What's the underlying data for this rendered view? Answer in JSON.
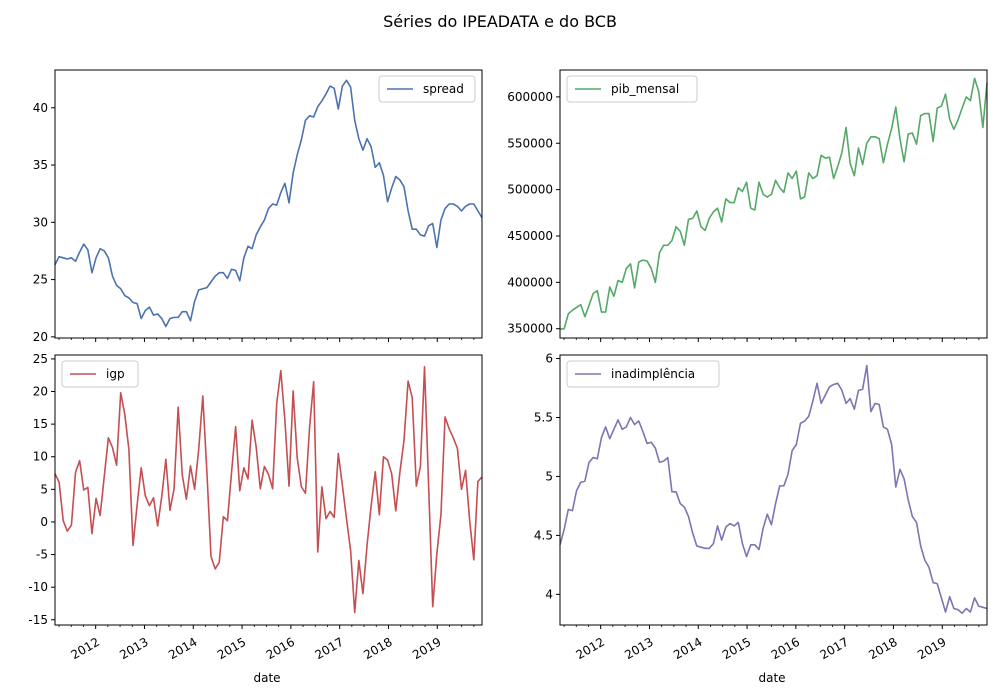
{
  "figure": {
    "title": "Séries do IPEADATA e do BCB",
    "xlabel": "date"
  },
  "chart_data": [
    {
      "type": "line",
      "series": [
        {
          "name": "spread",
          "color": "#4c72b0",
          "values": [
            26.3,
            27.0,
            26.9,
            26.8,
            26.9,
            26.6,
            27.4,
            28.1,
            27.6,
            25.6,
            26.9,
            27.7,
            27.5,
            26.9,
            25.3,
            24.5,
            24.2,
            23.6,
            23.4,
            23.0,
            22.9,
            21.6,
            22.3,
            22.6,
            21.9,
            22.0,
            21.6,
            20.9,
            21.6,
            21.7,
            21.7,
            22.2,
            22.2,
            21.4,
            23.1,
            24.1,
            24.2,
            24.3,
            24.8,
            25.3,
            25.6,
            25.6,
            25.1,
            25.9,
            25.8,
            24.9,
            26.9,
            27.9,
            27.7,
            28.9,
            29.6,
            30.2,
            31.2,
            31.6,
            31.5,
            32.6,
            33.4,
            31.7,
            34.3,
            35.9,
            37.2,
            38.9,
            39.3,
            39.2,
            40.1,
            40.6,
            41.2,
            41.9,
            41.7,
            39.9,
            41.9,
            42.4,
            41.8,
            38.9,
            37.3,
            36.3,
            37.3,
            36.6,
            34.8,
            35.2,
            34.1,
            31.8,
            33.0,
            34.0,
            33.7,
            33.1,
            31.0,
            29.4,
            29.4,
            28.9,
            28.8,
            29.7,
            29.9,
            27.8,
            30.2,
            31.2,
            31.6,
            31.6,
            31.4,
            31.0,
            31.4,
            31.6,
            31.6,
            31.0,
            30.4
          ]
        }
      ],
      "ylim": [
        19.9,
        43.3
      ],
      "yticks": [
        20,
        25,
        30,
        35,
        40
      ],
      "legend": "top-right"
    },
    {
      "type": "line",
      "series": [
        {
          "name": "pib_mensal",
          "color": "#55a868",
          "values": [
            349500,
            350000,
            366000,
            370000,
            373000,
            376000,
            363000,
            375000,
            388000,
            391000,
            368000,
            368000,
            395000,
            385000,
            402000,
            400000,
            415000,
            420000,
            394000,
            422000,
            424000,
            423000,
            415000,
            400000,
            432000,
            440000,
            440000,
            445000,
            460000,
            455000,
            440000,
            468000,
            469000,
            477000,
            460000,
            456000,
            469000,
            476000,
            480000,
            465000,
            490000,
            486000,
            486000,
            502000,
            498000,
            508000,
            480000,
            478000,
            508000,
            495000,
            492000,
            495000,
            510000,
            502000,
            497000,
            518000,
            512000,
            520000,
            490000,
            492000,
            518000,
            512000,
            515000,
            537000,
            534000,
            535000,
            512000,
            525000,
            540000,
            567000,
            528000,
            515000,
            545000,
            527000,
            550000,
            557000,
            557000,
            555000,
            529000,
            549000,
            566000,
            589000,
            555000,
            530000,
            560000,
            561000,
            549000,
            580000,
            582000,
            582000,
            552000,
            588000,
            590000,
            603000,
            576000,
            565000,
            575000,
            588000,
            600000,
            596000,
            620000,
            606000,
            567000,
            615000
          ]
        }
      ],
      "ylim": [
        340000,
        629000
      ],
      "yticks": [
        350000,
        400000,
        450000,
        500000,
        550000,
        600000
      ],
      "legend": "top-left"
    },
    {
      "type": "line",
      "series": [
        {
          "name": "igp",
          "color": "#c44e52",
          "values": [
            7.4,
            6.1,
            0.2,
            -1.4,
            -0.5,
            7.6,
            9.4,
            4.9,
            5.3,
            -1.8,
            3.6,
            1.0,
            7.0,
            12.9,
            11.4,
            8.7,
            19.8,
            16.5,
            11.1,
            -3.6,
            2.6,
            8.3,
            4.0,
            2.5,
            3.7,
            -0.6,
            3.9,
            9.6,
            1.8,
            5.1,
            17.6,
            7.2,
            3.5,
            8.6,
            5.0,
            11.1,
            19.3,
            7.6,
            -5.3,
            -7.2,
            -6.2,
            0.8,
            0.2,
            7.6,
            14.6,
            4.8,
            8.3,
            6.6,
            15.6,
            11.5,
            5.1,
            8.5,
            7.3,
            5.1,
            18.2,
            23.2,
            15.5,
            5.5,
            20.1,
            9.8,
            5.4,
            4.4,
            14.5,
            21.5,
            -4.6,
            5.4,
            0.5,
            1.6,
            0.7,
            10.5,
            5.6,
            0.5,
            -4.4,
            -13.9,
            -5.9,
            -11.0,
            -3.6,
            2.5,
            7.7,
            1.1,
            10.0,
            9.5,
            7.4,
            1.7,
            7.6,
            12.5,
            21.6,
            19.1,
            5.5,
            8.5,
            23.8,
            5.5,
            -13.0,
            -4.9,
            1.1,
            16.1,
            14.3,
            12.9,
            11.3,
            5.0,
            7.9,
            0.2,
            -5.8,
            6.2,
            6.9
          ]
        }
      ],
      "ylim": [
        -15.8,
        25.6
      ],
      "yticks": [
        -15,
        -10,
        -5,
        0,
        5,
        10,
        15,
        20,
        25
      ],
      "legend": "top-left"
    },
    {
      "type": "line",
      "series": [
        {
          "name": "inadimplência",
          "color": "#8172b2",
          "values": [
            4.42,
            4.55,
            4.72,
            4.71,
            4.88,
            4.95,
            4.96,
            5.12,
            5.16,
            5.15,
            5.33,
            5.42,
            5.32,
            5.4,
            5.48,
            5.4,
            5.42,
            5.5,
            5.44,
            5.47,
            5.38,
            5.28,
            5.29,
            5.24,
            5.12,
            5.13,
            5.16,
            4.87,
            4.87,
            4.77,
            4.74,
            4.66,
            4.52,
            4.41,
            4.4,
            4.39,
            4.39,
            4.43,
            4.58,
            4.46,
            4.57,
            4.6,
            4.58,
            4.61,
            4.43,
            4.32,
            4.42,
            4.42,
            4.38,
            4.56,
            4.68,
            4.59,
            4.77,
            4.92,
            4.92,
            5.02,
            5.22,
            5.27,
            5.45,
            5.47,
            5.51,
            5.64,
            5.79,
            5.62,
            5.69,
            5.76,
            5.78,
            5.79,
            5.73,
            5.62,
            5.66,
            5.57,
            5.73,
            5.74,
            5.94,
            5.55,
            5.62,
            5.61,
            5.42,
            5.4,
            5.27,
            4.91,
            5.06,
            4.98,
            4.8,
            4.66,
            4.61,
            4.41,
            4.29,
            4.23,
            4.1,
            4.09,
            3.97,
            3.85,
            3.98,
            3.88,
            3.87,
            3.84,
            3.88,
            3.85,
            3.97,
            3.9,
            3.89,
            3.88
          ]
        }
      ],
      "ylim": [
        3.74,
        6.03
      ],
      "yticks": [
        4.0,
        4.5,
        5.0,
        5.5,
        6.0
      ],
      "legend": "top-left"
    }
  ],
  "x_axis": {
    "start": "2011-03",
    "end": "2019-12",
    "tick_labels": [
      "2012",
      "2013",
      "2014",
      "2015",
      "2016",
      "2017",
      "2018",
      "2019"
    ]
  }
}
